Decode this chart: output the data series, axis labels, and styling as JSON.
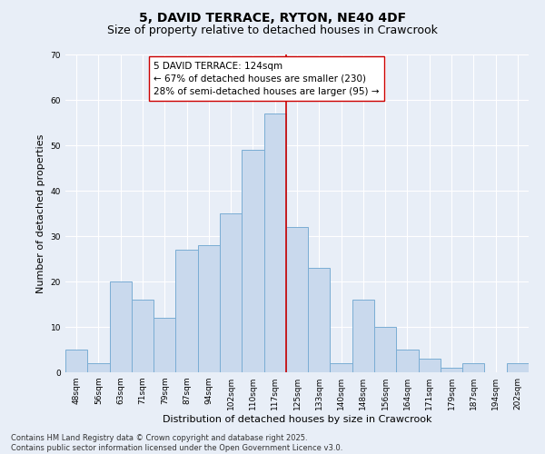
{
  "title": "5, DAVID TERRACE, RYTON, NE40 4DF",
  "subtitle": "Size of property relative to detached houses in Crawcrook",
  "xlabel": "Distribution of detached houses by size in Crawcrook",
  "ylabel": "Number of detached properties",
  "categories": [
    "48sqm",
    "56sqm",
    "63sqm",
    "71sqm",
    "79sqm",
    "87sqm",
    "94sqm",
    "102sqm",
    "110sqm",
    "117sqm",
    "125sqm",
    "133sqm",
    "140sqm",
    "148sqm",
    "156sqm",
    "164sqm",
    "171sqm",
    "179sqm",
    "187sqm",
    "194sqm",
    "202sqm"
  ],
  "values": [
    5,
    2,
    20,
    16,
    12,
    27,
    28,
    35,
    49,
    57,
    32,
    23,
    2,
    16,
    10,
    5,
    3,
    1,
    2,
    0,
    2
  ],
  "bar_color": "#c9d9ed",
  "bar_edge_color": "#7aadd4",
  "marker_line_color": "#cc0000",
  "marker_index": 9,
  "annotation_text": "5 DAVID TERRACE: 124sqm\n← 67% of detached houses are smaller (230)\n28% of semi-detached houses are larger (95) →",
  "annotation_box_color": "#ffffff",
  "annotation_box_edge_color": "#cc0000",
  "ylim": [
    0,
    70
  ],
  "yticks": [
    0,
    10,
    20,
    30,
    40,
    50,
    60,
    70
  ],
  "bg_color": "#e8eef7",
  "grid_color": "#ffffff",
  "footer": "Contains HM Land Registry data © Crown copyright and database right 2025.\nContains public sector information licensed under the Open Government Licence v3.0.",
  "title_fontsize": 10,
  "subtitle_fontsize": 9,
  "xlabel_fontsize": 8,
  "ylabel_fontsize": 8,
  "tick_fontsize": 6.5,
  "annotation_fontsize": 7.5,
  "footer_fontsize": 6
}
